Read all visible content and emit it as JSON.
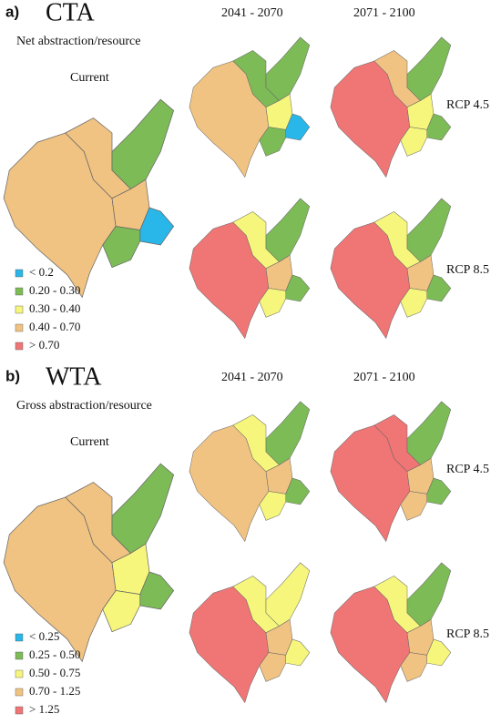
{
  "panels": [
    {
      "label": "a)",
      "title": "CTA",
      "subtitle": "Net abstraction/resource",
      "current": "Current",
      "periods": [
        "2041 - 2070",
        "2071 - 2100"
      ],
      "scenarios": [
        "RCP 4.5",
        "RCP 8.5"
      ],
      "legend": [
        {
          "label": "< 0.2",
          "color": "#29b6e8"
        },
        {
          "label": "0.20 - 0.30",
          "color": "#7dbb57"
        },
        {
          "label": "0.30 - 0.40",
          "color": "#f6f67c"
        },
        {
          "label": "0.40 - 0.70",
          "color": "#f0c382"
        },
        {
          "label": "> 0.70",
          "color": "#f07575"
        }
      ]
    },
    {
      "label": "b)",
      "title": "WTA",
      "subtitle": "Gross abstraction/resource",
      "current": "Current",
      "periods": [
        "2041 - 2070",
        "2071 - 2100"
      ],
      "scenarios": [
        "RCP 4.5",
        "RCP 8.5"
      ],
      "legend": [
        {
          "label": "< 0.25",
          "color": "#29b6e8"
        },
        {
          "label": "0.25 - 0.50",
          "color": "#7dbb57"
        },
        {
          "label": "0.50 - 0.75",
          "color": "#f6f67c"
        },
        {
          "label": "0.70 - 1.25",
          "color": "#f0c382"
        },
        {
          "label": "> 1.25",
          "color": "#f07575"
        }
      ]
    }
  ]
}
